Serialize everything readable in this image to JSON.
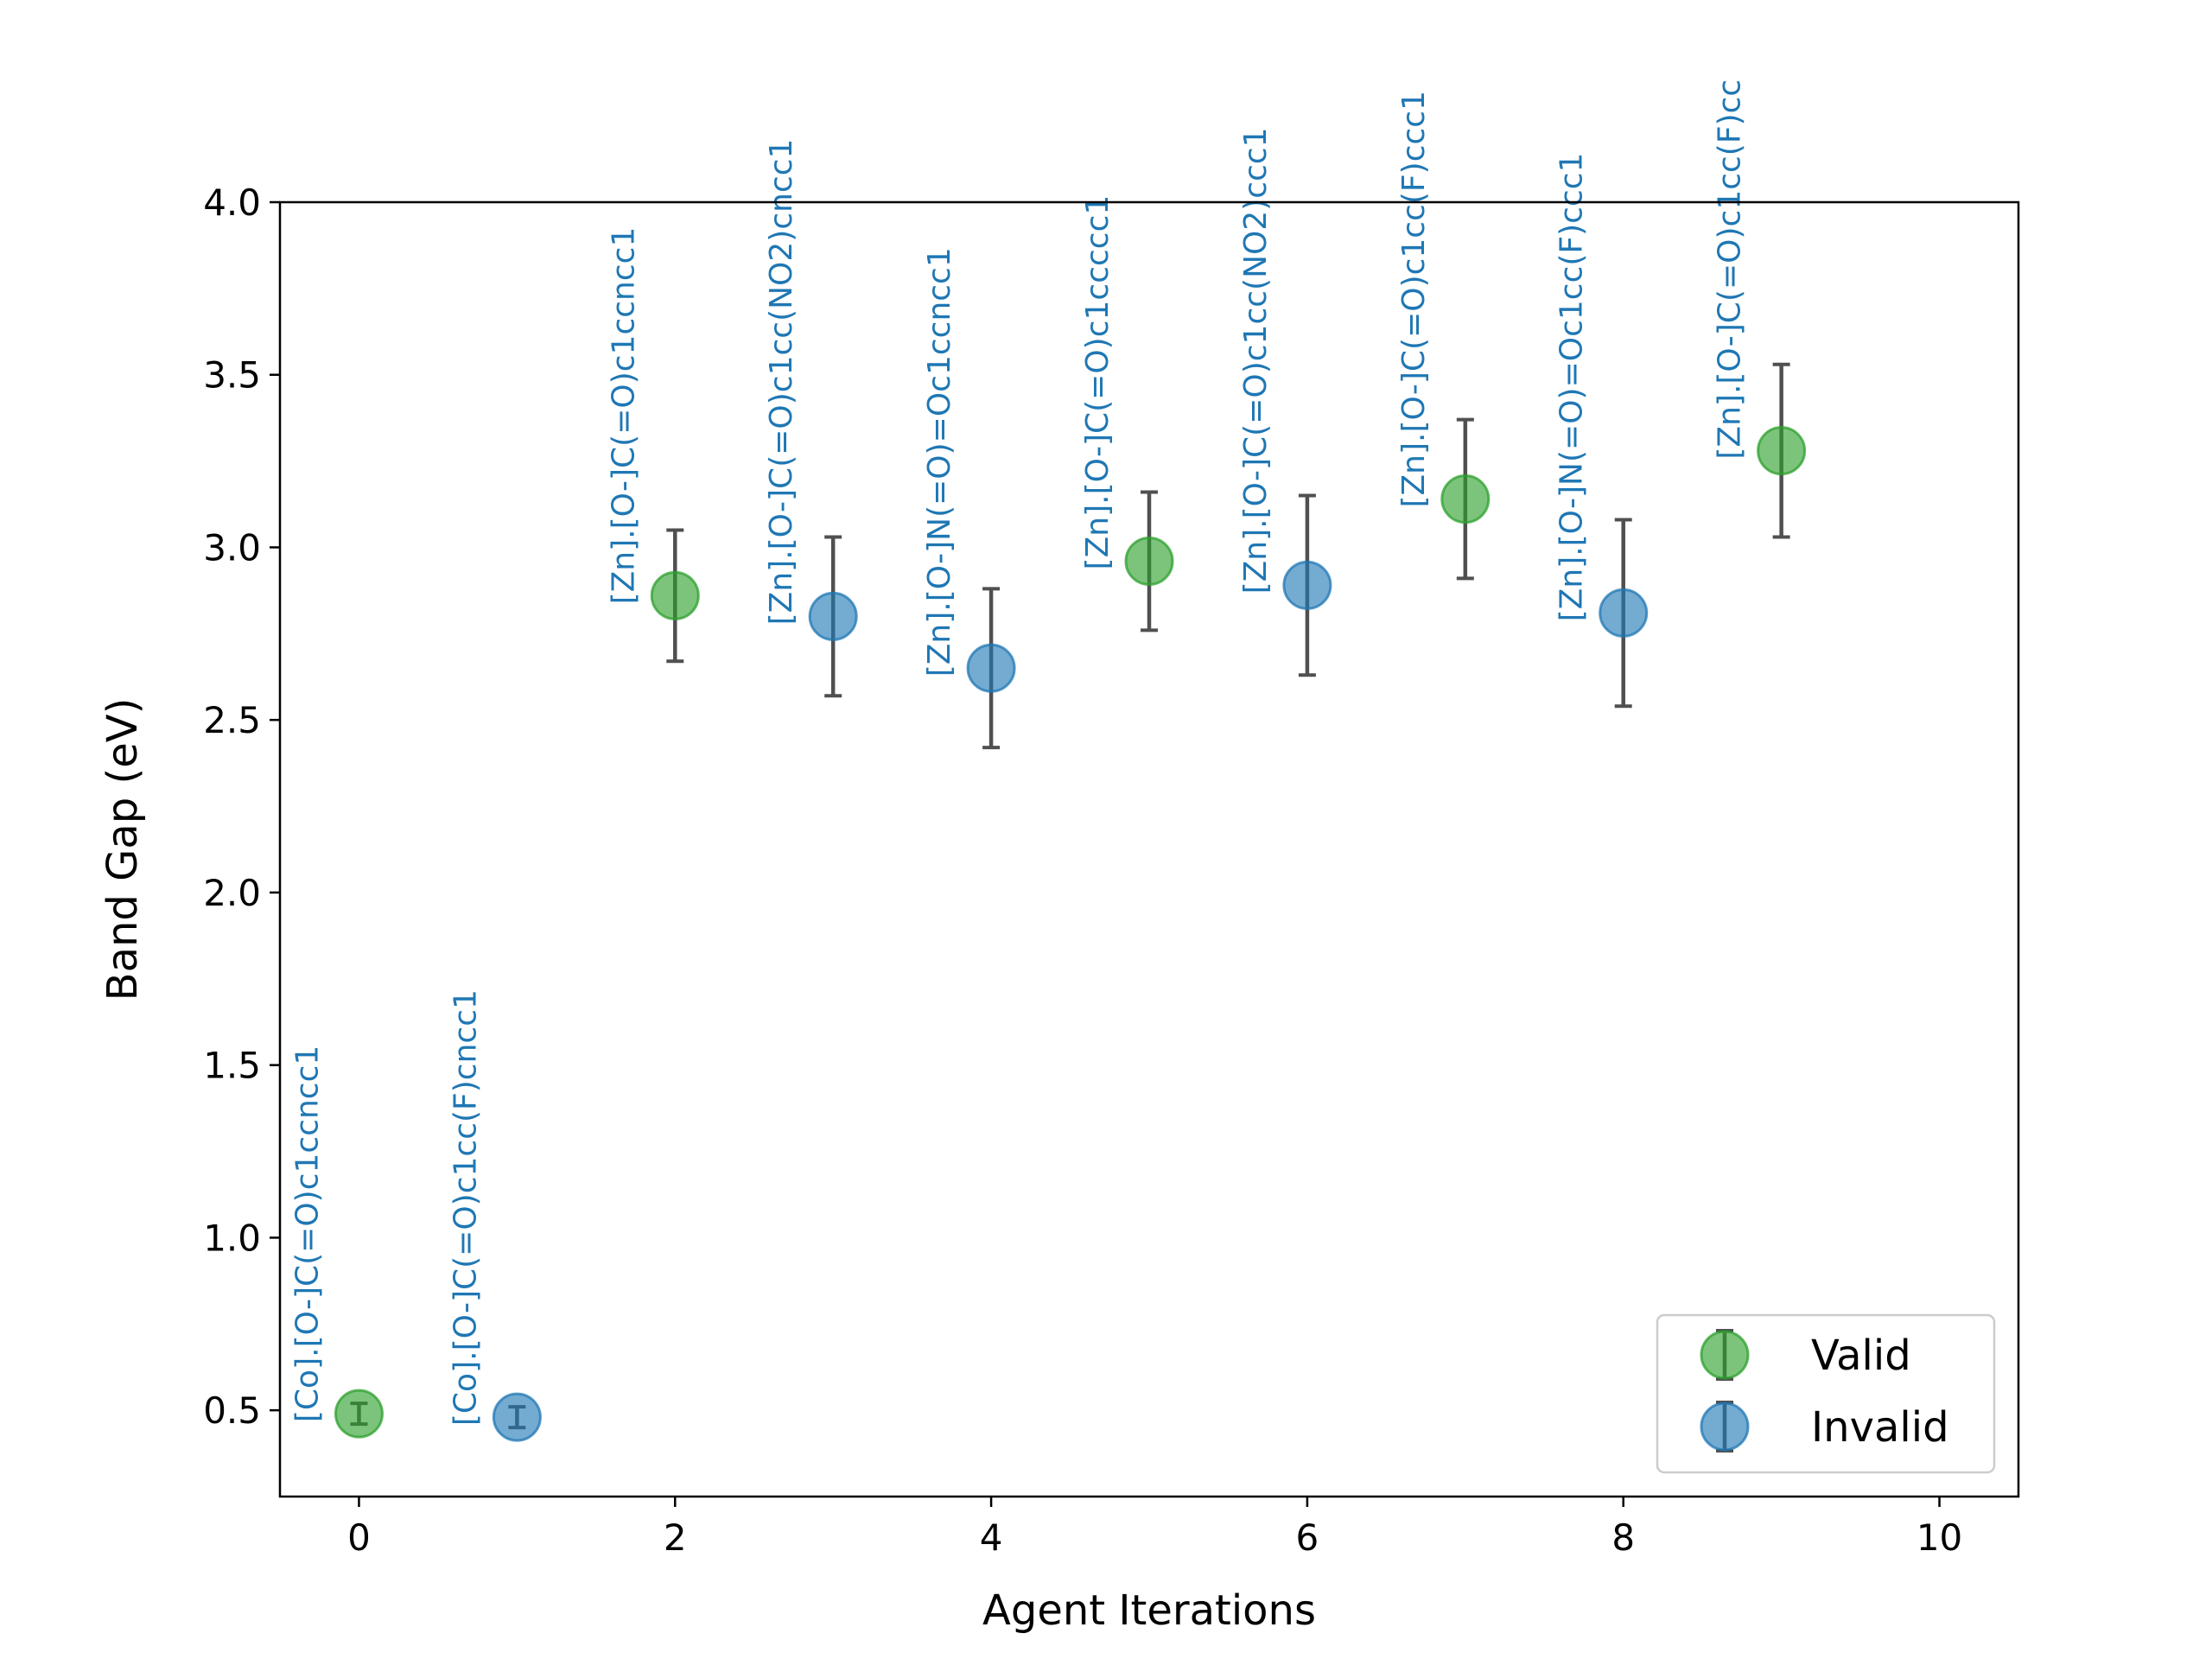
{
  "chart_data": {
    "type": "scatter",
    "xlabel": "Agent Iterations",
    "ylabel": "Band Gap (eV)",
    "xlim": [
      -0.5,
      10.5
    ],
    "ylim": [
      0.25,
      4.0
    ],
    "xticks": [
      "0",
      "2",
      "4",
      "6",
      "8",
      "10"
    ],
    "yticks": [
      "0.5",
      "1.0",
      "1.5",
      "2.0",
      "2.5",
      "3.0",
      "3.5",
      "4.0"
    ],
    "grid": false,
    "legend_position": "lower-right",
    "annotation_color": "#1f77b4",
    "series": [
      {
        "name": "Valid",
        "color": "#2ca02c",
        "points": [
          {
            "x": 0,
            "y": 0.49,
            "err": 0.03,
            "label": "[Co].[O-]C(=O)c1ccncc1"
          },
          {
            "x": 2,
            "y": 2.86,
            "err": 0.19,
            "label": "[Zn].[O-]C(=O)c1ccncc1"
          },
          {
            "x": 5,
            "y": 2.96,
            "err": 0.2,
            "label": "[Zn].[O-]C(=O)c1ccccc1"
          },
          {
            "x": 7,
            "y": 3.14,
            "err": 0.23,
            "label": "[Zn].[O-]C(=O)c1cc(F)ccc1"
          },
          {
            "x": 9,
            "y": 3.28,
            "err": 0.25,
            "label": "[Zn].[O-]C(=O)c1cc(F)cc"
          }
        ]
      },
      {
        "name": "Invalid",
        "color": "#1f77b4",
        "points": [
          {
            "x": 1,
            "y": 0.48,
            "err": 0.03,
            "label": "[Co].[O-]C(=O)c1cc(F)cncc1"
          },
          {
            "x": 3,
            "y": 2.8,
            "err": 0.23,
            "label": "[Zn].[O-]C(=O)c1cc(NO2)cncc1"
          },
          {
            "x": 4,
            "y": 2.65,
            "err": 0.23,
            "label": "[Zn].[O-]N(=O)=Oc1ccncc1"
          },
          {
            "x": 6,
            "y": 2.89,
            "err": 0.26,
            "label": "[Zn].[O-]C(=O)c1cc(NO2)ccc1"
          },
          {
            "x": 8,
            "y": 2.81,
            "err": 0.27,
            "label": "[Zn].[O-]N(=O)=Oc1cc(F)ccc1"
          }
        ]
      }
    ]
  }
}
